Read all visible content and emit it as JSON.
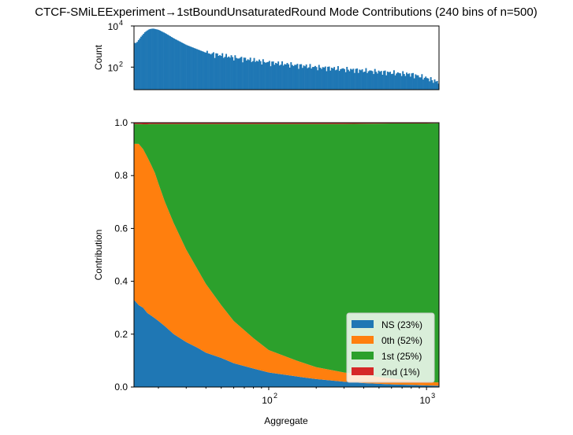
{
  "title": "CTCF-SMiLEExperiment→1stBoundUnsaturatedRound Mode Contributions (240 bins of n=500)",
  "chart_data": [
    {
      "type": "bar",
      "panel": "histogram",
      "ylabel": "Count",
      "xscale": "log",
      "yscale": "log",
      "xlim": [
        14,
        1200
      ],
      "ylim": [
        8,
        10000
      ],
      "yticks": [
        {
          "value": 100,
          "base": "10",
          "exp": "2"
        },
        {
          "value": 10000,
          "base": "10",
          "exp": "4"
        }
      ],
      "x": [
        14.5,
        15.5,
        16.5,
        17.5,
        18.5,
        20,
        22,
        25,
        30,
        40,
        60,
        100,
        200,
        300,
        500,
        800,
        1000,
        1150
      ],
      "values": [
        1500,
        3000,
        5200,
        7000,
        7500,
        6500,
        4500,
        2500,
        1200,
        500,
        300,
        170,
        100,
        80,
        60,
        45,
        30,
        20
      ],
      "color": "#1f77b4"
    },
    {
      "type": "area",
      "panel": "contributions",
      "stacked": true,
      "xlabel": "Aggregate",
      "ylabel": "Contribution",
      "xscale": "log",
      "xlim": [
        14,
        1200
      ],
      "ylim": [
        0,
        1.0
      ],
      "xticks": [
        {
          "value": 100,
          "base": "10",
          "exp": "2"
        },
        {
          "value": 1000,
          "base": "10",
          "exp": "3"
        }
      ],
      "yticks": [
        "0.0",
        "0.2",
        "0.4",
        "0.6",
        "0.8",
        "1.0"
      ],
      "legend_position": "lower-right",
      "x": [
        14,
        15,
        16,
        17,
        18,
        19,
        20,
        22,
        25,
        30,
        35,
        40,
        50,
        60,
        80,
        100,
        150,
        200,
        300,
        400,
        600,
        800,
        1000,
        1200
      ],
      "series": [
        {
          "name": "NS (23%)",
          "color": "#1f77b4",
          "values": [
            0.33,
            0.31,
            0.3,
            0.28,
            0.27,
            0.26,
            0.25,
            0.23,
            0.2,
            0.17,
            0.15,
            0.13,
            0.11,
            0.09,
            0.07,
            0.055,
            0.04,
            0.03,
            0.02,
            0.015,
            0.01,
            0.008,
            0.006,
            0.005
          ]
        },
        {
          "name": "0th (52%)",
          "color": "#ff7f0e",
          "values": [
            0.59,
            0.61,
            0.6,
            0.59,
            0.57,
            0.55,
            0.52,
            0.47,
            0.42,
            0.35,
            0.3,
            0.26,
            0.2,
            0.16,
            0.115,
            0.085,
            0.06,
            0.045,
            0.035,
            0.03,
            0.022,
            0.017,
            0.014,
            0.012
          ]
        },
        {
          "name": "1st (25%)",
          "color": "#2ca02c",
          "values": [
            0.075,
            0.075,
            0.094,
            0.124,
            0.155,
            0.185,
            0.225,
            0.295,
            0.375,
            0.475,
            0.545,
            0.605,
            0.685,
            0.745,
            0.81,
            0.855,
            0.895,
            0.92,
            0.94,
            0.951,
            0.965,
            0.972,
            0.977,
            0.981
          ]
        },
        {
          "name": "2nd (1%)",
          "color": "#d62728",
          "values": [
            0.005,
            0.005,
            0.006,
            0.006,
            0.005,
            0.005,
            0.005,
            0.005,
            0.005,
            0.005,
            0.005,
            0.005,
            0.005,
            0.005,
            0.005,
            0.005,
            0.005,
            0.005,
            0.005,
            0.004,
            0.003,
            0.003,
            0.003,
            0.002
          ]
        }
      ]
    }
  ]
}
